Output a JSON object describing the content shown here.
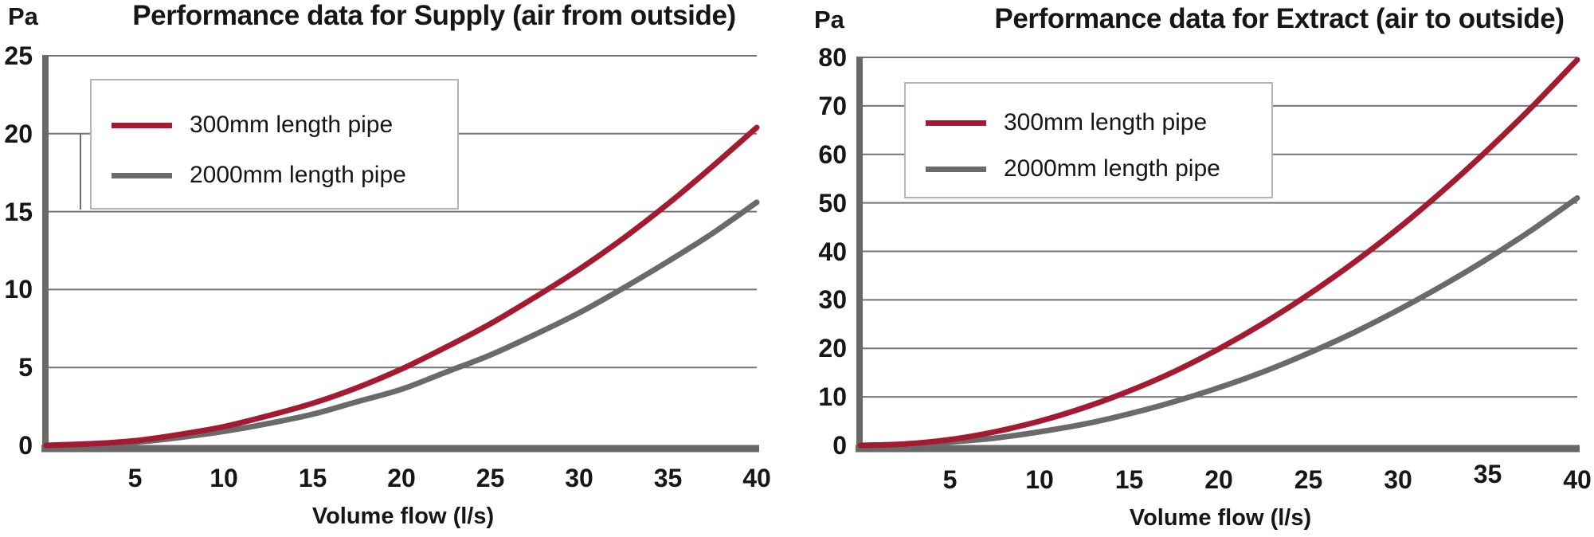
{
  "colors": {
    "accent_red": "#a41b31",
    "accent_gray": "#6a6a6a",
    "axis": "#696969",
    "grid": "#757575",
    "text": "#161616",
    "legend_border": "#b4b4b4",
    "background": "#ffffff"
  },
  "chart_data": [
    {
      "type": "line",
      "title": "Performance data for Supply (air from outside)",
      "y_axis_unit": "Pa",
      "x_axis_label": "Volume flow (l/s)",
      "xlim": [
        0,
        40
      ],
      "ylim": [
        0,
        25
      ],
      "x_ticks": [
        5,
        10,
        15,
        20,
        25,
        30,
        35,
        40
      ],
      "y_ticks": [
        0,
        5,
        10,
        15,
        20,
        25
      ],
      "grid": true,
      "legend_position": "top-left",
      "series": [
        {
          "name": "300mm length pipe",
          "color": "#a41b31",
          "x": [
            0,
            2.5,
            5,
            7.5,
            10,
            12.5,
            15,
            17.5,
            20,
            22.5,
            25,
            27.5,
            30,
            32.5,
            35,
            37.5,
            40
          ],
          "values": [
            0,
            0.1,
            0.3,
            0.7,
            1.2,
            1.9,
            2.7,
            3.7,
            4.9,
            6.3,
            7.8,
            9.5,
            11.3,
            13.3,
            15.5,
            17.9,
            20.4
          ]
        },
        {
          "name": "2000mm length pipe",
          "color": "#6a6a6a",
          "x": [
            0,
            2.5,
            5,
            7.5,
            10,
            12.5,
            15,
            17.5,
            20,
            22.5,
            25,
            27.5,
            30,
            32.5,
            35,
            37.5,
            40
          ],
          "values": [
            0,
            0.1,
            0.2,
            0.5,
            0.9,
            1.4,
            2.0,
            2.8,
            3.6,
            4.7,
            5.8,
            7.1,
            8.5,
            10.1,
            11.8,
            13.6,
            15.6
          ]
        }
      ]
    },
    {
      "type": "line",
      "title": "Performance data for Extract (air to outside)",
      "y_axis_unit": "Pa",
      "x_axis_label": "Volume flow (l/s)",
      "xlim": [
        0,
        40
      ],
      "ylim": [
        0,
        80
      ],
      "x_ticks": [
        5,
        10,
        15,
        20,
        25,
        30,
        35,
        40
      ],
      "y_ticks": [
        0,
        10,
        20,
        30,
        40,
        50,
        60,
        70,
        80
      ],
      "grid": true,
      "legend_position": "top-left",
      "series": [
        {
          "name": "300mm length pipe",
          "color": "#a41b31",
          "x": [
            0,
            2.5,
            5,
            7.5,
            10,
            12.5,
            15,
            17.5,
            20,
            22.5,
            25,
            27.5,
            30,
            32.5,
            35,
            37.5,
            40
          ],
          "values": [
            0,
            0.3,
            1.2,
            2.8,
            5.0,
            7.8,
            11.2,
            15.2,
            19.9,
            25.2,
            31.1,
            37.6,
            44.7,
            52.5,
            60.9,
            69.9,
            79.5
          ]
        },
        {
          "name": "2000mm length pipe",
          "color": "#6a6a6a",
          "x": [
            0,
            2.5,
            5,
            7.5,
            10,
            12.5,
            15,
            17.5,
            20,
            22.5,
            25,
            27.5,
            30,
            32.5,
            35,
            37.5,
            40
          ],
          "values": [
            0,
            0.2,
            0.7,
            1.5,
            2.8,
            4.4,
            6.5,
            9.0,
            11.9,
            15.2,
            19.0,
            23.2,
            27.9,
            33.0,
            38.5,
            44.5,
            51.0
          ]
        }
      ]
    }
  ]
}
